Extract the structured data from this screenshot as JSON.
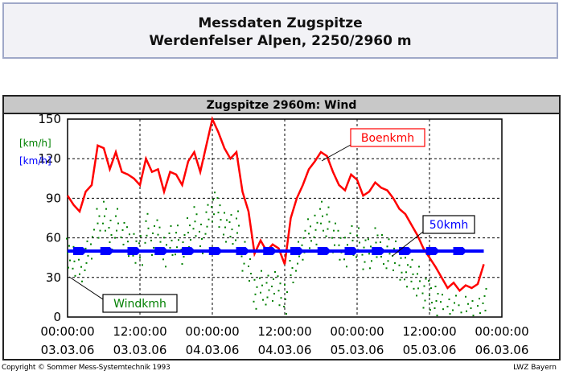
{
  "header": {
    "line1": "Messdaten Zugspitze",
    "line2": "Werdenfelser Alpen, 2250/2960 m"
  },
  "chart_data": {
    "type": "line",
    "title": "Zugspitze 2960m: Wind",
    "y_units": [
      {
        "text": "[km/h]",
        "color": "#008000"
      },
      {
        "text": "[km/h]",
        "color": "#0000ff"
      }
    ],
    "ylim": [
      0,
      150
    ],
    "yticks": [
      "150",
      "120",
      "90",
      "60",
      "30",
      "0"
    ],
    "ytick_values": [
      150,
      120,
      90,
      60,
      30,
      0
    ],
    "xlim": [
      0,
      72
    ],
    "xticks": [
      {
        "time": "00:00:00",
        "date": "03.03.06",
        "hour": 0
      },
      {
        "time": "12:00:00",
        "date": "03.03.06",
        "hour": 12
      },
      {
        "time": "00:00:00",
        "date": "04.03.06",
        "hour": 24
      },
      {
        "time": "12:00:00",
        "date": "04.03.06",
        "hour": 36
      },
      {
        "time": "00:00:00",
        "date": "05.03.06",
        "hour": 48
      },
      {
        "time": "12:00:00",
        "date": "05.03.06",
        "hour": 60
      },
      {
        "time": "00:00:00",
        "date": "06.03.06",
        "hour": 72
      }
    ],
    "grid": true,
    "series": [
      {
        "name": "Boenkmh",
        "color": "#ff0000",
        "style": "line",
        "x": [
          0,
          1,
          2,
          3,
          4,
          5,
          6,
          7,
          8,
          9,
          10,
          11,
          12,
          13,
          14,
          15,
          16,
          17,
          18,
          19,
          20,
          21,
          22,
          23,
          24,
          25,
          26,
          27,
          28,
          29,
          30,
          31,
          32,
          33,
          34,
          35,
          36,
          37,
          38,
          39,
          40,
          41,
          42,
          43,
          44,
          45,
          46,
          47,
          48,
          49,
          50,
          51,
          52,
          53,
          54,
          55,
          56,
          57,
          58,
          59,
          60,
          61,
          62,
          63,
          64,
          65,
          66,
          67,
          68,
          69
        ],
        "y": [
          92,
          85,
          80,
          95,
          100,
          130,
          128,
          112,
          125,
          110,
          108,
          105,
          100,
          120,
          110,
          112,
          95,
          110,
          108,
          100,
          118,
          125,
          110,
          130,
          150,
          140,
          128,
          120,
          125,
          95,
          80,
          48,
          58,
          50,
          55,
          52,
          40,
          75,
          90,
          100,
          112,
          118,
          125,
          122,
          110,
          100,
          96,
          108,
          104,
          92,
          95,
          102,
          98,
          96,
          90,
          82,
          78,
          70,
          62,
          52,
          45,
          38,
          30,
          22,
          26,
          20,
          24,
          22,
          25,
          40
        ]
      },
      {
        "name": "Windkmh",
        "color": "#008000",
        "style": "dots",
        "x": [
          0,
          1,
          2,
          3,
          4,
          5,
          6,
          7,
          8,
          9,
          10,
          11,
          12,
          13,
          14,
          15,
          16,
          17,
          18,
          19,
          20,
          21,
          22,
          23,
          24,
          25,
          26,
          27,
          28,
          29,
          30,
          31,
          32,
          33,
          34,
          35,
          36,
          37,
          38,
          39,
          40,
          41,
          42,
          43,
          44,
          45,
          46,
          47,
          48,
          49,
          50,
          51,
          52,
          53,
          54,
          55,
          56,
          57,
          58,
          59,
          60,
          61,
          62,
          63,
          64,
          65,
          66,
          67,
          68,
          69
        ],
        "y": [
          60,
          55,
          52,
          58,
          68,
          85,
          88,
          75,
          85,
          72,
          70,
          66,
          62,
          80,
          72,
          74,
          62,
          72,
          70,
          64,
          78,
          84,
          72,
          88,
          95,
          92,
          82,
          78,
          82,
          60,
          50,
          30,
          38,
          32,
          36,
          34,
          25,
          50,
          60,
          66,
          76,
          80,
          88,
          85,
          74,
          66,
          62,
          72,
          68,
          60,
          62,
          68,
          64,
          62,
          58,
          52,
          48,
          44,
          40,
          32,
          28,
          25,
          20,
          14,
          18,
          12,
          16,
          14,
          17,
          22
        ]
      },
      {
        "name": "",
        "color": "#0000ff",
        "style": "line-with-arrows",
        "x": [
          0,
          69
        ],
        "y": [
          50,
          50
        ]
      }
    ],
    "annotations": [
      {
        "text": "Boenkmh",
        "color": "#ff0000",
        "border": "#ff0000"
      },
      {
        "text": "50kmh",
        "color": "#0000ff",
        "border": "#000000"
      },
      {
        "text": "Windkmh",
        "color": "#008000",
        "border": "#000000"
      }
    ]
  },
  "footer": {
    "copyright": "Copyright © Sommer Mess-Systemtechnik 1993",
    "agency": "LWZ Bayern"
  }
}
